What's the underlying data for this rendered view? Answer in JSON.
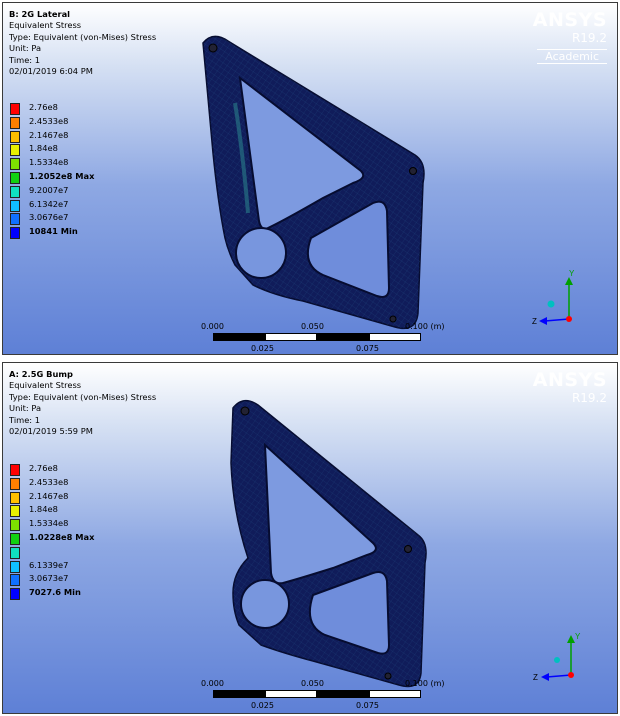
{
  "panels": [
    {
      "title": "B: 2G Lateral",
      "lines": [
        "Equivalent Stress",
        "Type: Equivalent (von-Mises) Stress",
        "Unit: Pa",
        "Time: 1",
        "02/01/2019 6:04 PM"
      ],
      "legend": [
        {
          "label": "2.76e8",
          "color": "#ff0000",
          "bold": false
        },
        {
          "label": "2.4533e8",
          "color": "#ff7f00",
          "bold": false
        },
        {
          "label": "2.1467e8",
          "color": "#ffbf00",
          "bold": false
        },
        {
          "label": "1.84e8",
          "color": "#e8f000",
          "bold": false
        },
        {
          "label": "1.5334e8",
          "color": "#7ee000",
          "bold": false
        },
        {
          "label": "1.2052e8 Max",
          "color": "#12d012",
          "bold": true
        },
        {
          "label": "9.2007e7",
          "color": "#10e0c0",
          "bold": false
        },
        {
          "label": "6.1342e7",
          "color": "#10c0ff",
          "bold": false
        },
        {
          "label": "3.0676e7",
          "color": "#1070ff",
          "bold": false
        },
        {
          "label": "10841 Min",
          "color": "#0000ff",
          "bold": true
        }
      ],
      "brand": {
        "name": "ANSYS",
        "version": "R19.2",
        "edition": "Academic"
      },
      "scale": {
        "top_ticks": [
          "0.000",
          "0.050",
          "0.100 (m)"
        ],
        "bottom_ticks": [
          "0.025",
          "0.075"
        ]
      }
    },
    {
      "title": "A: 2.5G Bump",
      "lines": [
        "Equivalent Stress",
        "Type: Equivalent (von-Mises) Stress",
        "Unit: Pa",
        "Time: 1",
        "02/01/2019 5:59 PM"
      ],
      "legend": [
        {
          "label": "2.76e8",
          "color": "#ff0000",
          "bold": false
        },
        {
          "label": "2.4533e8",
          "color": "#ff7f00",
          "bold": false
        },
        {
          "label": "2.1467e8",
          "color": "#ffbf00",
          "bold": false
        },
        {
          "label": "1.84e8",
          "color": "#e8f000",
          "bold": false
        },
        {
          "label": "1.5334e8",
          "color": "#7ee000",
          "bold": false
        },
        {
          "label": "1.0228e8 Max",
          "color": "#12d012",
          "bold": true
        },
        {
          "label": "",
          "color": "#10e0c0",
          "bold": false
        },
        {
          "label": "6.1339e7",
          "color": "#10c0ff",
          "bold": false
        },
        {
          "label": "3.0673e7",
          "color": "#1070ff",
          "bold": false
        },
        {
          "label": "7027.6 Min",
          "color": "#0000ff",
          "bold": true
        }
      ],
      "brand": {
        "name": "ANSYS",
        "version": "R19.2",
        "edition": ""
      },
      "scale": {
        "top_ticks": [
          "0.000",
          "0.050",
          "0.100 (m)"
        ],
        "bottom_ticks": [
          "0.025",
          "0.075"
        ]
      }
    }
  ],
  "colors": {
    "part_fill": "#101c5a",
    "part_edge": "#060c30",
    "mesh_highlight": "#2a7f8a",
    "triad_y": "#00a000",
    "triad_z": "#0000ff",
    "triad_x": "#ff0000",
    "triad_origin": "#00c0c0"
  },
  "triad_labels": {
    "y": "Y",
    "z": "Z"
  }
}
